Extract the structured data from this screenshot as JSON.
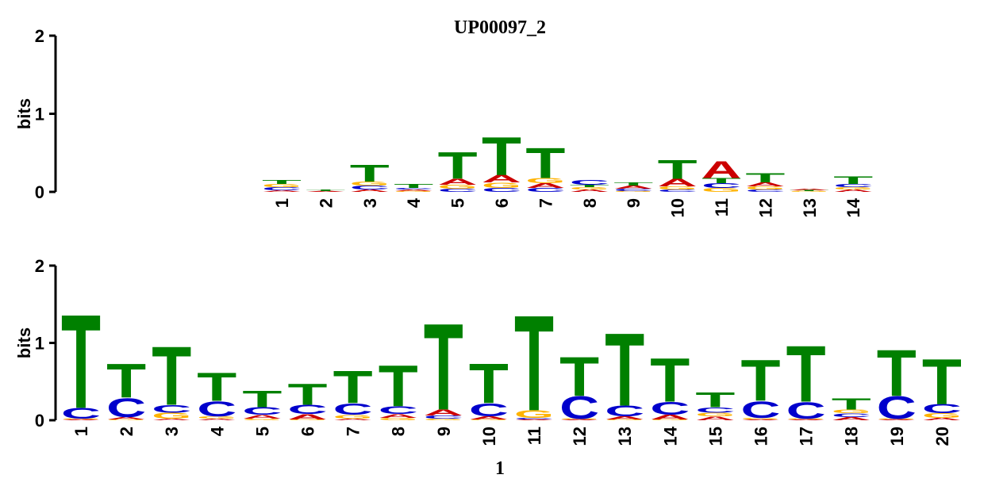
{
  "chart_data": [
    {
      "type": "logo",
      "title": "UP00097_2",
      "ylabel": "bits",
      "ylim": [
        0,
        2
      ],
      "yticks": [
        0,
        1,
        2
      ],
      "categories": [
        "1",
        "2",
        "3",
        "4",
        "5",
        "6",
        "7",
        "8",
        "9",
        "10",
        "11",
        "12",
        "13",
        "14"
      ],
      "series": [
        {
          "name": "A",
          "color": "#cc0000",
          "values": [
            0.02,
            0.01,
            0.03,
            0.02,
            0.08,
            0.1,
            0.06,
            0.03,
            0.04,
            0.1,
            0.22,
            0.05,
            0.02,
            0.03
          ]
        },
        {
          "name": "C",
          "color": "#0000cc",
          "values": [
            0.04,
            0,
            0.05,
            0.02,
            0.04,
            0.05,
            0.05,
            0.06,
            0.03,
            0.03,
            0.06,
            0.03,
            0,
            0.04
          ]
        },
        {
          "name": "G",
          "color": "#ffb300",
          "values": [
            0.04,
            0,
            0.05,
            0.01,
            0.05,
            0.07,
            0.07,
            0.03,
            0.01,
            0.04,
            0.05,
            0.04,
            0.01,
            0.03
          ]
        },
        {
          "name": "T",
          "color": "#008000",
          "values": [
            0.05,
            0.02,
            0.22,
            0.05,
            0.35,
            0.5,
            0.4,
            0.03,
            0.04,
            0.25,
            0.07,
            0.12,
            0.01,
            0.1
          ]
        }
      ]
    },
    {
      "type": "logo",
      "ylabel": "bits",
      "xlabel": "1",
      "ylim": [
        0,
        2
      ],
      "yticks": [
        0,
        1,
        2
      ],
      "categories": [
        "1",
        "2",
        "3",
        "4",
        "5",
        "6",
        "7",
        "8",
        "9",
        "10",
        "11",
        "12",
        "13",
        "14",
        "15",
        "16",
        "17",
        "18",
        "19",
        "20"
      ],
      "series": [
        {
          "name": "A",
          "color": "#cc0000",
          "values": [
            0.01,
            0.03,
            0.02,
            0.02,
            0.05,
            0.07,
            0.02,
            0.05,
            0.08,
            0.04,
            0.01,
            0.01,
            0.04,
            0.06,
            0.05,
            0.01,
            0.01,
            0.04,
            0.01,
            0.03
          ]
        },
        {
          "name": "C",
          "color": "#0000cc",
          "values": [
            0.14,
            0.25,
            0.1,
            0.2,
            0.1,
            0.12,
            0.15,
            0.1,
            0.04,
            0.17,
            0.02,
            0.3,
            0.14,
            0.17,
            0.07,
            0.22,
            0.22,
            0.05,
            0.3,
            0.12
          ]
        },
        {
          "name": "G",
          "color": "#ffb300",
          "values": [
            0.01,
            0.01,
            0.08,
            0.03,
            0.02,
            0.01,
            0.05,
            0.03,
            0.02,
            0.01,
            0.1,
            0.01,
            0.01,
            0.01,
            0.05,
            0.02,
            0.01,
            0.05,
            0.01,
            0.06
          ]
        },
        {
          "name": "T",
          "color": "#008000",
          "values": [
            1.25,
            0.45,
            0.78,
            0.38,
            0.22,
            0.28,
            0.43,
            0.55,
            1.15,
            0.53,
            1.27,
            0.52,
            0.97,
            0.58,
            0.2,
            0.55,
            0.75,
            0.15,
            0.62,
            0.6
          ]
        }
      ]
    }
  ]
}
